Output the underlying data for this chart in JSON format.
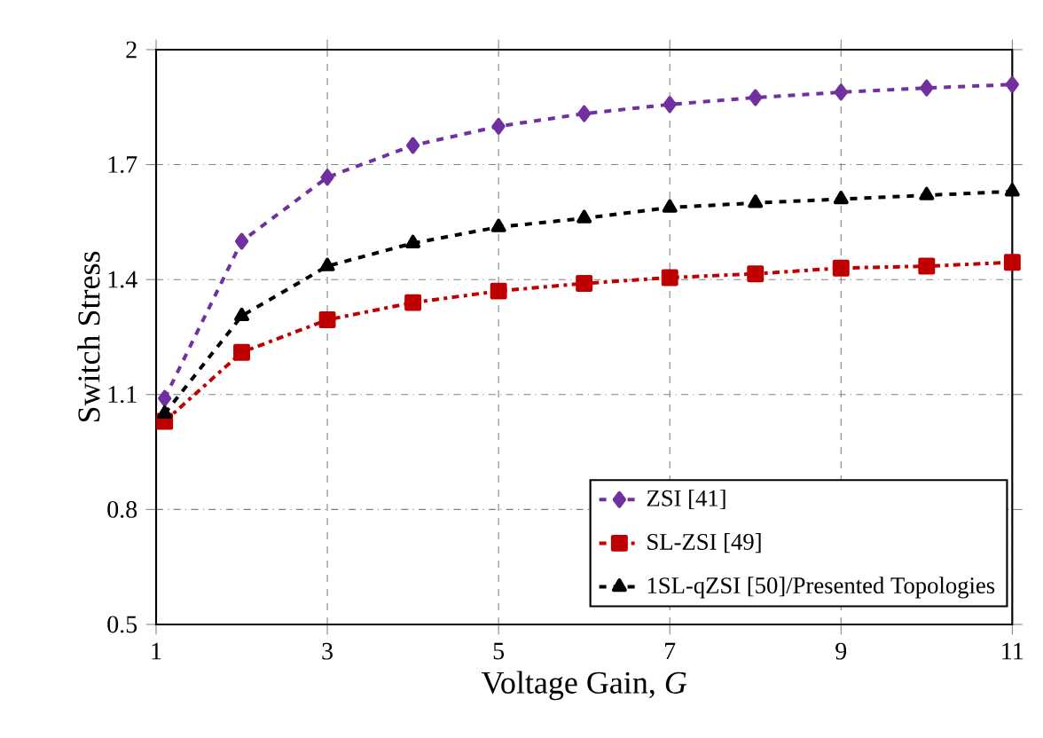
{
  "chart_data": {
    "type": "line",
    "xlabel": "Voltage Gain, *G*",
    "ylabel": "Switch Stress",
    "x": [
      1.1,
      2,
      3,
      4,
      5,
      6,
      7,
      8,
      9,
      10,
      11
    ],
    "series": [
      {
        "name": "ZSI [41]",
        "color": "#7030a0",
        "marker": "diamond",
        "line_style": "dashed",
        "values": [
          1.09,
          1.5,
          1.667,
          1.75,
          1.8,
          1.833,
          1.857,
          1.875,
          1.889,
          1.9,
          1.909
        ]
      },
      {
        "name": "SL-ZSI [49]",
        "color": "#c00000",
        "marker": "square",
        "line_style": "dashdot",
        "values": [
          1.03,
          1.21,
          1.295,
          1.34,
          1.37,
          1.39,
          1.405,
          1.415,
          1.43,
          1.435,
          1.445
        ]
      },
      {
        "name": "1SL-qZSI [50]/Presented Topologies",
        "color": "#000000",
        "marker": "triangle",
        "line_style": "dashed",
        "values": [
          1.05,
          1.305,
          1.435,
          1.495,
          1.537,
          1.56,
          1.588,
          1.6,
          1.61,
          1.62,
          1.63
        ]
      }
    ],
    "xlim": [
      1,
      11
    ],
    "ylim": [
      0.5,
      2
    ],
    "xticks": [
      1,
      3,
      5,
      7,
      9,
      11
    ],
    "yticks": [
      0.5,
      0.8,
      1.1,
      1.4,
      1.7,
      2
    ],
    "grid": true,
    "legend": "bottom right"
  }
}
